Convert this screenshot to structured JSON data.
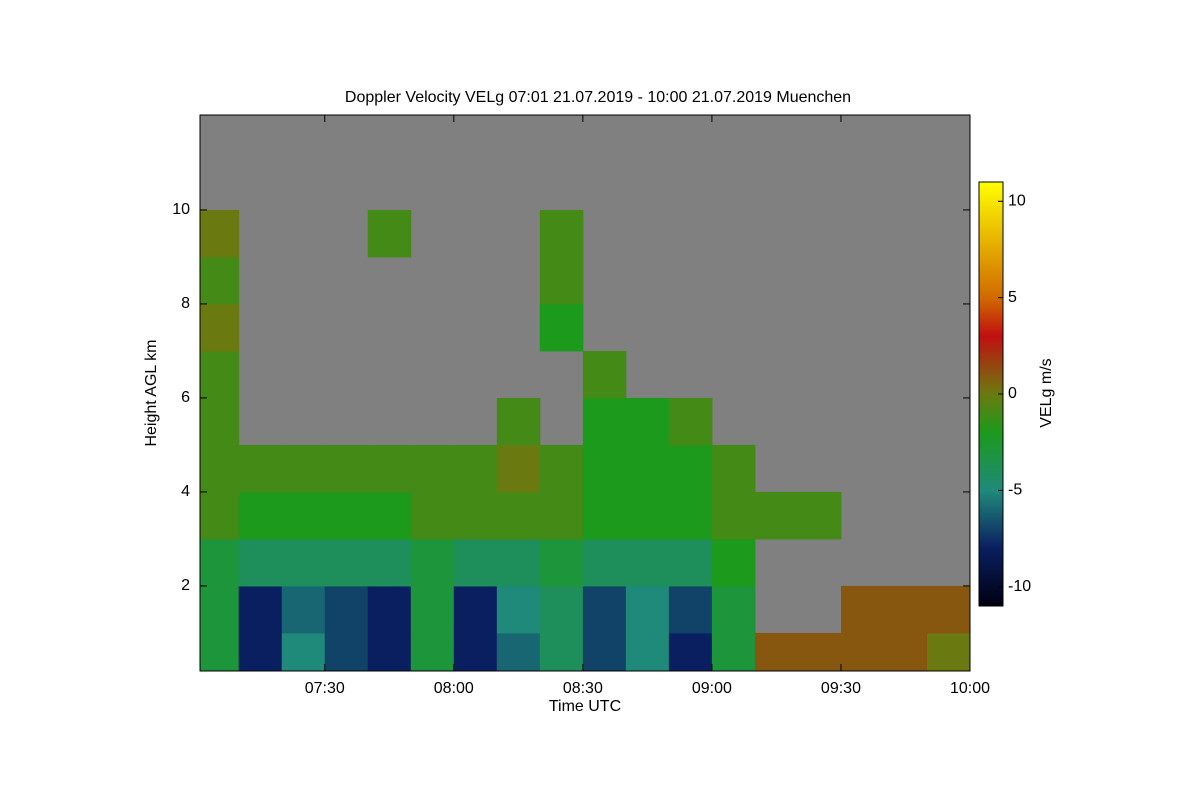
{
  "chart_data": {
    "type": "heatmap",
    "title": "Doppler Velocity VELg   07:01 21.07.2019 - 10:00 21.07.2019 Muenchen",
    "xlabel": "Time UTC",
    "ylabel": "Height AGL km",
    "colorbar_label": "VELg m/s",
    "xlim": [
      1,
      180
    ],
    "xticks": [
      {
        "value": 30,
        "label": "07:30"
      },
      {
        "value": 60,
        "label": "08:00"
      },
      {
        "value": 90,
        "label": "08:30"
      },
      {
        "value": 120,
        "label": "09:00"
      },
      {
        "value": 150,
        "label": "09:30"
      },
      {
        "value": 180,
        "label": "10:00"
      }
    ],
    "ylim": [
      0.19,
      12.02
    ],
    "yticks": [
      2,
      4,
      6,
      8,
      10
    ],
    "clim": [
      -11,
      11
    ],
    "cticks": [
      10,
      5,
      0,
      -5,
      -10
    ],
    "missing_color": "#808080",
    "colorscale": [
      [
        -11,
        "#000010"
      ],
      [
        -8,
        "#0a1f60"
      ],
      [
        -5,
        "#1f8a7a"
      ],
      [
        -2,
        "#1c9a1c"
      ],
      [
        0,
        "#6b7a10"
      ],
      [
        3,
        "#c01010"
      ],
      [
        5,
        "#d06a00"
      ],
      [
        11,
        "#ffff00"
      ]
    ],
    "x_edges": [
      0,
      10,
      20,
      30,
      40,
      50,
      60,
      70,
      80,
      90,
      100,
      110,
      120,
      130,
      140,
      150,
      160,
      170,
      180
    ],
    "y_edges": [
      0,
      1,
      2,
      3,
      4,
      5,
      6,
      7,
      8,
      9,
      10,
      11,
      12
    ],
    "values": [
      [
        -3,
        -3,
        -3,
        -1,
        -1,
        -1,
        -1,
        0,
        -1,
        0,
        null,
        null
      ],
      [
        -8,
        -8,
        -4,
        -2,
        -1,
        null,
        null,
        null,
        null,
        null,
        null,
        null
      ],
      [
        -5,
        -6,
        -4,
        -2,
        -1,
        null,
        null,
        null,
        null,
        null,
        null,
        null
      ],
      [
        -7,
        -7,
        -4,
        -2,
        -1,
        null,
        null,
        null,
        null,
        null,
        null,
        null
      ],
      [
        -8,
        -8,
        -4,
        -2,
        -1,
        null,
        null,
        null,
        null,
        -1,
        null,
        null
      ],
      [
        -3,
        -3,
        -3,
        -1,
        -1,
        null,
        null,
        null,
        null,
        null,
        null,
        null
      ],
      [
        -8,
        -8,
        -4,
        -1,
        -1,
        null,
        null,
        null,
        null,
        null,
        null,
        null
      ],
      [
        -6,
        -5,
        -4,
        -1,
        0,
        -1,
        null,
        null,
        null,
        null,
        null,
        null
      ],
      [
        -4,
        -4,
        -3,
        -1,
        -1,
        null,
        null,
        -2,
        -1,
        -1,
        null,
        null
      ],
      [
        -7,
        -7,
        -4,
        -2,
        -2,
        -2,
        -1,
        null,
        null,
        null,
        null,
        null
      ],
      [
        -5,
        -5,
        -4,
        -2,
        -2,
        -2,
        null,
        null,
        null,
        null,
        null,
        null
      ],
      [
        -8,
        -7,
        -4,
        -2,
        -2,
        -1,
        null,
        null,
        null,
        null,
        null,
        null
      ],
      [
        -3,
        -3,
        -2,
        -1,
        -1,
        null,
        null,
        null,
        null,
        null,
        null,
        null
      ],
      [
        1,
        null,
        null,
        -1,
        null,
        null,
        null,
        null,
        null,
        null,
        null,
        null
      ],
      [
        1,
        null,
        null,
        -1,
        null,
        null,
        null,
        null,
        null,
        null,
        null,
        null
      ],
      [
        1,
        1,
        null,
        null,
        null,
        null,
        null,
        null,
        null,
        null,
        null,
        null
      ],
      [
        1,
        1,
        null,
        null,
        null,
        null,
        null,
        null,
        null,
        null,
        null,
        null
      ],
      [
        0,
        1,
        null,
        null,
        null,
        null,
        null,
        null,
        null,
        null,
        null,
        null
      ]
    ]
  }
}
